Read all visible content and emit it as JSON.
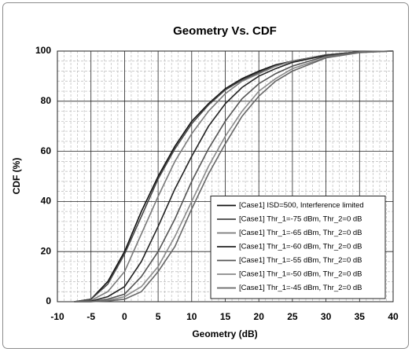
{
  "chart_data": {
    "type": "line",
    "title": "Geometry Vs. CDF",
    "x_label": "Geometry (dB)",
    "y_label": "CDF (%)",
    "x": [
      -7.5,
      -5,
      -2.5,
      0,
      2.5,
      5,
      7.5,
      10,
      12.5,
      15,
      17.5,
      20,
      22.5,
      25,
      30,
      35,
      40
    ],
    "series": [
      {
        "name": "[Case1] ISD=500, Interference limited",
        "color": "#111111",
        "values": [
          0,
          1,
          8,
          20,
          36,
          50,
          62,
          72,
          79,
          85,
          89,
          92,
          94.5,
          96,
          98.5,
          99.7,
          100
        ]
      },
      {
        "name": "[Case1] Thr_1=-75 dBm, Thr_2=0 dB",
        "color": "#444444",
        "values": [
          0,
          1,
          7,
          19,
          34,
          49,
          61,
          71,
          78.5,
          84.5,
          88.5,
          91.5,
          94,
          96,
          98.5,
          99.7,
          100
        ]
      },
      {
        "name": "[Case1] Thr_1=-65 dBm, Thr_2=0 dB",
        "color": "#7a7a7a",
        "values": [
          0,
          0.5,
          4,
          12,
          27,
          42,
          56,
          67,
          76,
          83,
          88,
          91,
          94,
          96,
          98.5,
          99.7,
          100
        ]
      },
      {
        "name": "[Case1] Thr_1=-60 dBm, Thr_2=0 dB",
        "color": "#222222",
        "values": [
          0,
          0.2,
          2,
          6,
          16,
          30,
          45,
          58,
          70,
          79,
          85.5,
          90,
          93,
          95.5,
          98.3,
          99.6,
          100
        ]
      },
      {
        "name": "[Case1] Thr_1=-55 dBm, Thr_2=0 dB",
        "color": "#555555",
        "values": [
          0,
          0,
          1,
          3,
          10,
          20,
          33,
          48,
          61,
          72,
          81,
          87,
          91,
          94,
          98,
          99.5,
          100
        ]
      },
      {
        "name": "[Case1] Thr_1=-50 dBm, Thr_2=0 dB",
        "color": "#8a8a8a",
        "values": [
          0,
          0,
          0.5,
          2,
          6,
          14,
          26,
          40,
          54,
          66,
          76,
          84,
          89,
          93,
          97.5,
          99.5,
          100
        ]
      },
      {
        "name": "[Case1] Thr_1=-45 dBm, Thr_2=0 dB",
        "color": "#666666",
        "values": [
          0,
          0,
          0.3,
          1,
          4,
          12,
          22,
          37,
          51,
          63,
          74,
          82,
          88,
          92,
          97.3,
          99.4,
          100
        ]
      }
    ],
    "xlim": [
      -10,
      40
    ],
    "xticks": [
      -10,
      -5,
      0,
      5,
      10,
      15,
      20,
      25,
      30,
      35,
      40
    ],
    "ylim": [
      0,
      100
    ],
    "yticks": [
      0,
      20,
      40,
      60,
      80,
      100
    ],
    "grid": true,
    "legend": "lower right"
  }
}
